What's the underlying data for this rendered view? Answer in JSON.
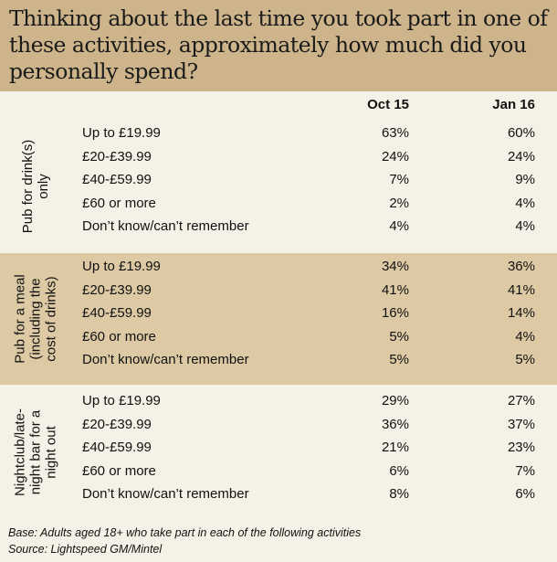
{
  "title": "Thinking about the last time you took part in one of these activities, approximately how much did you personally spend?",
  "chart_data": {
    "type": "table",
    "columns": [
      "Oct 15",
      "Jan 16"
    ],
    "groups": [
      {
        "label": "Pub for drink(s)\nonly",
        "rows": [
          {
            "label": "Up to £19.99",
            "values": [
              "63%",
              "60%"
            ]
          },
          {
            "label": "£20-£39.99",
            "values": [
              "24%",
              "24%"
            ]
          },
          {
            "label": "£40-£59.99",
            "values": [
              "7%",
              "9%"
            ]
          },
          {
            "label": "£60 or more",
            "values": [
              "2%",
              "4%"
            ]
          },
          {
            "label": "Don’t know/can’t remember",
            "values": [
              "4%",
              "4%"
            ]
          }
        ]
      },
      {
        "label": "Pub for a meal\n(including the\ncost of drinks)",
        "rows": [
          {
            "label": "Up to £19.99",
            "values": [
              "34%",
              "36%"
            ]
          },
          {
            "label": "£20-£39.99",
            "values": [
              "41%",
              "41%"
            ]
          },
          {
            "label": "£40-£59.99",
            "values": [
              "16%",
              "14%"
            ]
          },
          {
            "label": "£60 or more",
            "values": [
              "5%",
              "4%"
            ]
          },
          {
            "label": "Don’t know/can’t remember",
            "values": [
              "5%",
              "5%"
            ]
          }
        ]
      },
      {
        "label": "Nightclub/late-\nnight bar for a\nnight out",
        "rows": [
          {
            "label": "Up to £19.99",
            "values": [
              "29%",
              "27%"
            ]
          },
          {
            "label": "£20-£39.99",
            "values": [
              "36%",
              "37%"
            ]
          },
          {
            "label": "£40-£59.99",
            "values": [
              "21%",
              "23%"
            ]
          },
          {
            "label": "£60 or more",
            "values": [
              "6%",
              "7%"
            ]
          },
          {
            "label": "Don’t know/can’t remember",
            "values": [
              "8%",
              "6%"
            ]
          }
        ]
      }
    ]
  },
  "footer": {
    "base": "Base: Adults aged 18+ who take part in each of the following activities",
    "source": "Source: Lightspeed GM/Mintel"
  },
  "colors": {
    "title_band": "#cdb48a",
    "band_dark": "#ddcaa5",
    "band_light": "#f6f1e6"
  }
}
